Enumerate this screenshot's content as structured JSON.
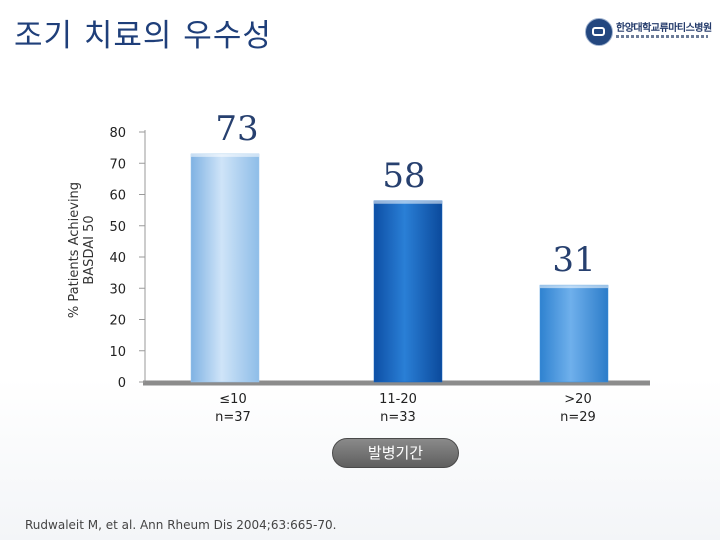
{
  "slide": {
    "title": "조기 치료의 우수성",
    "logo_text": "한양대학교류마티스병원",
    "source": "Rudwaleit M, et al. Ann Rheum Dis 2004;63:665-70."
  },
  "chart_data": {
    "type": "bar",
    "categories": [
      {
        "line1": "≤10",
        "line2": "n=37"
      },
      {
        "line1": "11-20",
        "line2": "n=33"
      },
      {
        "line1": ">20",
        "line2": "n=29"
      }
    ],
    "values": [
      73,
      58,
      31
    ],
    "value_labels": [
      "73",
      "58",
      "31"
    ],
    "ylabel_line1": "% Patients Achieving",
    "ylabel_line2": "BASDAI 50",
    "xlabel": "발병기간",
    "ylim": [
      0,
      80
    ],
    "yticks": [
      0,
      10,
      20,
      30,
      40,
      50,
      60,
      70,
      80
    ],
    "grid": false,
    "colors": [
      "#9cc6ec",
      "#1565c0",
      "#3d8fd9"
    ]
  }
}
